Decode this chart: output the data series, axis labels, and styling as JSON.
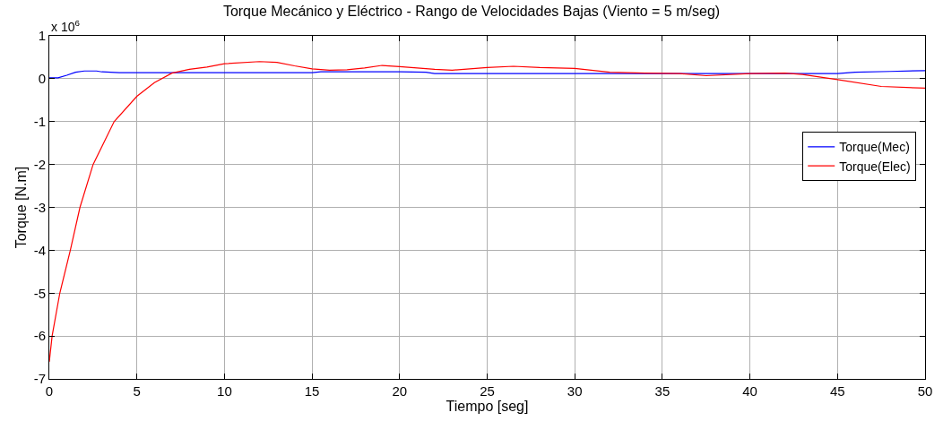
{
  "chart_data": {
    "type": "line",
    "title": "Torque Mecánico y Eléctrico - Rango de Velocidades Bajas (Viento = 5 m/seg)",
    "xlabel": "Tiempo [seg]",
    "ylabel": "Torque [N.m]",
    "annotations": [
      "x 10$^{6}$"
    ],
    "xlim": [
      0,
      50
    ],
    "xticks": [
      0,
      5,
      10,
      15,
      20,
      25,
      30,
      35,
      40,
      45,
      50
    ],
    "ylim": [
      -7,
      1
    ],
    "yticks": [
      -7,
      -6,
      -5,
      -4,
      -3,
      -2,
      -1,
      0,
      1
    ],
    "grid": true,
    "legend": "right",
    "line_style": "solid",
    "series": [
      {
        "name": "Torque(Mec)",
        "color": "#0000ff",
        "x": [
          0,
          0.5,
          1,
          1.5,
          2,
          2.7,
          3,
          4,
          15,
          15.5,
          20,
          21.5,
          22,
          45,
          46,
          48,
          50
        ],
        "values": [
          0.02,
          0.02,
          0.08,
          0.15,
          0.18,
          0.18,
          0.16,
          0.14,
          0.14,
          0.16,
          0.16,
          0.15,
          0.12,
          0.12,
          0.15,
          0.17,
          0.19
        ]
      },
      {
        "name": "Torque(Elec)",
        "color": "#ff0000",
        "x": [
          0,
          0.16,
          0.6,
          1.2,
          1.75,
          2.5,
          3.7,
          5,
          6,
          7,
          8,
          9,
          10,
          12,
          13,
          14,
          15,
          16,
          17,
          18,
          19,
          20,
          22,
          23,
          25,
          26.5,
          28,
          30,
          32,
          34,
          36,
          37.5,
          40,
          42,
          43,
          45,
          47.5,
          50
        ],
        "values": [
          -6.6,
          -6.0,
          -5.0,
          -4.0,
          -3.0,
          -2.0,
          -1.0,
          -0.41,
          -0.09,
          0.13,
          0.22,
          0.27,
          0.35,
          0.4,
          0.38,
          0.3,
          0.23,
          0.2,
          0.21,
          0.25,
          0.31,
          0.28,
          0.22,
          0.2,
          0.26,
          0.29,
          0.26,
          0.24,
          0.15,
          0.13,
          0.12,
          0.07,
          0.12,
          0.13,
          0.1,
          -0.02,
          -0.18,
          -0.22
        ]
      }
    ]
  }
}
